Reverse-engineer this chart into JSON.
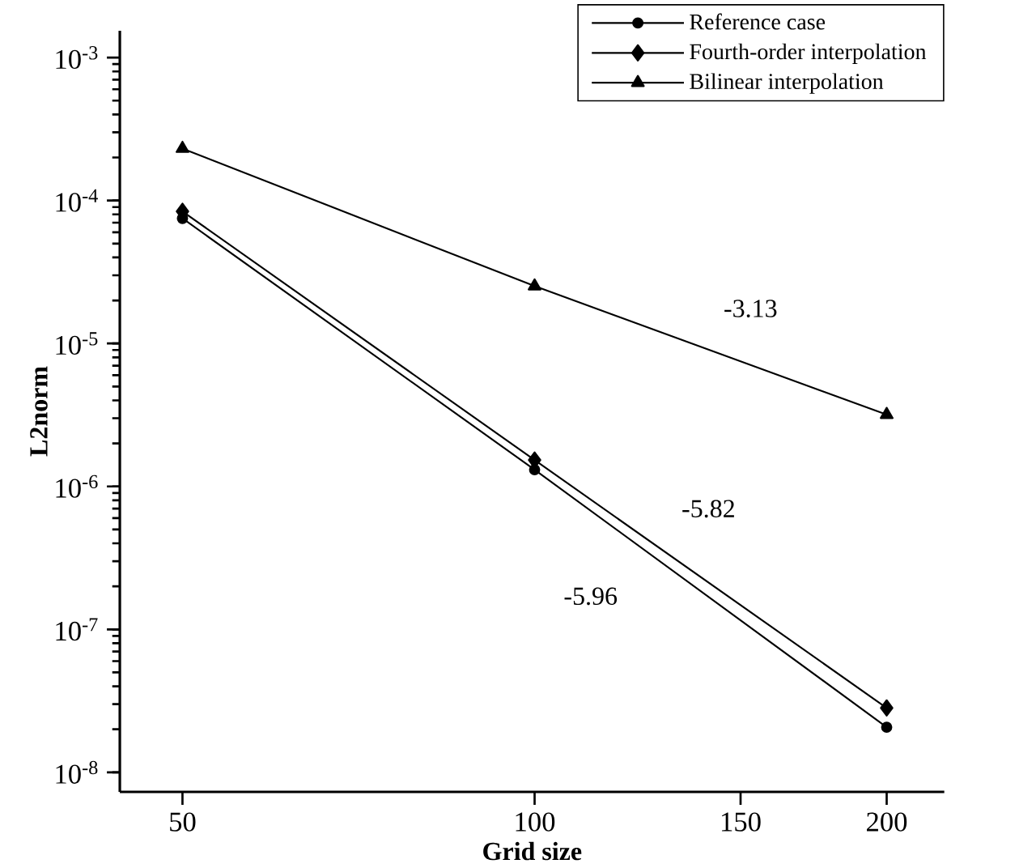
{
  "chart_data": {
    "type": "line",
    "xlabel": "Grid size",
    "ylabel": "L2norm",
    "log": "xy",
    "x": [
      50,
      100,
      200
    ],
    "series": [
      {
        "name": "Reference case",
        "color": "#000000",
        "marker": "circle",
        "values": [
          7.5e-05,
          1.31e-06,
          2.07e-08
        ]
      },
      {
        "name": "Fourth-order interpolation",
        "color": "#000000",
        "marker": "diamond",
        "values": [
          8.4e-05,
          1.53e-06,
          2.82e-08
        ]
      },
      {
        "name": "Bilinear interpolation",
        "color": "#000000",
        "marker": "triangle",
        "values": [
          0.000231,
          2.52e-05,
          3.18e-06
        ]
      }
    ],
    "xlim": [
      44.2,
      224
    ],
    "xticks": [
      50,
      100,
      150,
      200
    ],
    "ylim": [
      7.3e-09,
      0.00154
    ],
    "yticks": [
      {
        "value": 1e-08,
        "label": "10$^{-8}$"
      },
      {
        "value": 1e-07,
        "label": "10$^{-7}$"
      },
      {
        "value": 1e-06,
        "label": "10$^{-6}$"
      },
      {
        "value": 1e-05,
        "label": "10$^{-5}$"
      },
      {
        "value": 0.0001,
        "label": "10$^{-4}$"
      },
      {
        "value": 0.001,
        "label": "10$^{-3}$"
      }
    ],
    "annotations": [
      "-3.13",
      "-5.82",
      "-5.96"
    ],
    "legend": "top right",
    "grid": false,
    "line_style": "solid"
  }
}
